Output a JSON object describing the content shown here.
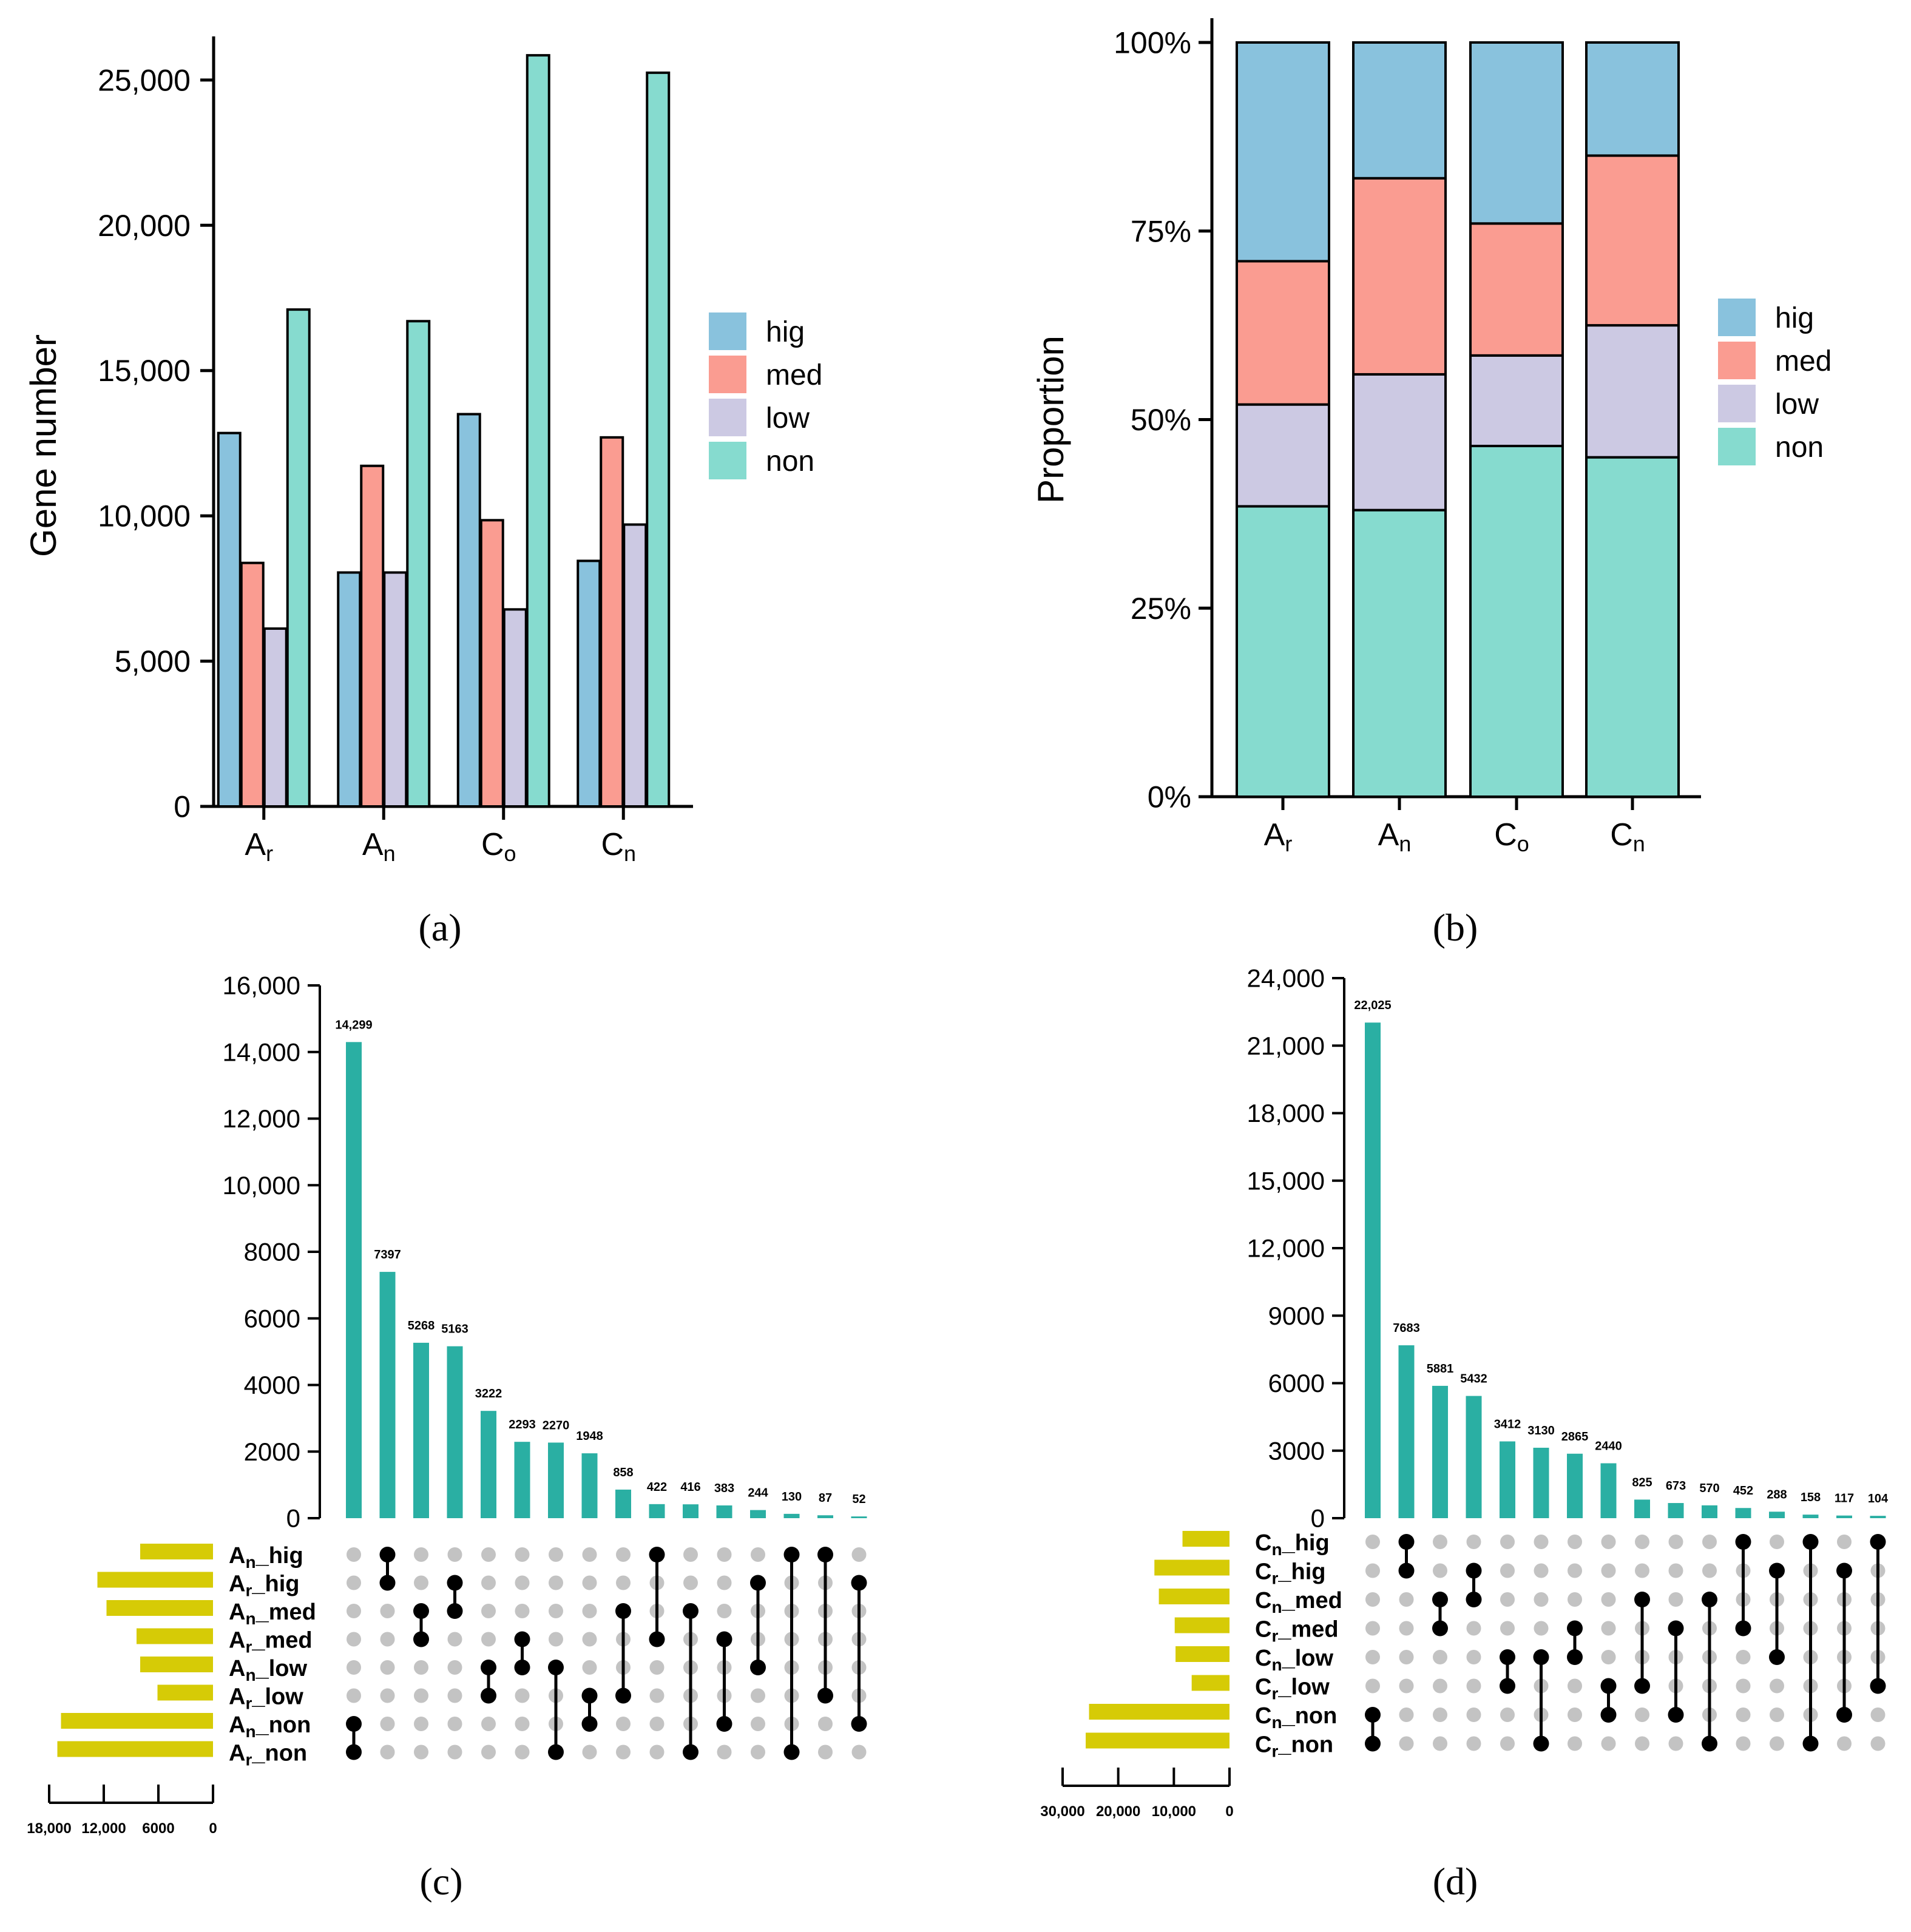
{
  "chart_data": [
    {
      "id": "a",
      "type": "bar",
      "panel_label": "(a)",
      "ylabel": "Gene number",
      "ylim": [
        0,
        26500
      ],
      "yticks": [
        0,
        5000,
        10000,
        15000,
        20000,
        25000
      ],
      "yticklabels": [
        "0",
        "5,000",
        "10,000",
        "15,000",
        "20,000",
        "25,000"
      ],
      "categories": [
        {
          "main": "A",
          "sub": "r"
        },
        {
          "main": "A",
          "sub": "n"
        },
        {
          "main": "C",
          "sub": "o"
        },
        {
          "main": "C",
          "sub": "n"
        }
      ],
      "series": [
        {
          "name": "hig",
          "color": "#89c2dd",
          "values": [
            12850,
            8050,
            13500,
            8450
          ]
        },
        {
          "name": "med",
          "color": "#fa9c91",
          "values": [
            8380,
            11720,
            9850,
            12700
          ]
        },
        {
          "name": "low",
          "color": "#ccc9e3",
          "values": [
            6120,
            8050,
            6780,
            9700
          ]
        },
        {
          "name": "non",
          "color": "#86dbcf",
          "values": [
            17100,
            16700,
            25850,
            25250
          ]
        }
      ],
      "legend_position": "right"
    },
    {
      "id": "b",
      "type": "bar",
      "stacked": true,
      "panel_label": "(b)",
      "ylabel": "Proportion",
      "ylim": [
        0,
        100
      ],
      "yticks": [
        0,
        25,
        50,
        75,
        100
      ],
      "yticklabels": [
        "0%",
        "25%",
        "50%",
        "75%",
        "100%"
      ],
      "categories": [
        {
          "main": "A",
          "sub": "r"
        },
        {
          "main": "A",
          "sub": "n"
        },
        {
          "main": "C",
          "sub": "o"
        },
        {
          "main": "C",
          "sub": "n"
        }
      ],
      "series": [
        {
          "name": "hig",
          "color": "#89c2dd",
          "values": [
            29,
            18,
            24,
            15
          ]
        },
        {
          "name": "med",
          "color": "#fa9c91",
          "values": [
            19,
            26,
            17.5,
            22.5
          ]
        },
        {
          "name": "low",
          "color": "#ccc9e3",
          "values": [
            13.5,
            18,
            12,
            17.5
          ]
        },
        {
          "name": "non",
          "color": "#86dbcf",
          "values": [
            38.5,
            38,
            46.5,
            45
          ]
        }
      ],
      "legend_position": "right"
    },
    {
      "id": "c",
      "type": "bar",
      "subtype": "upset",
      "panel_label": "(c)",
      "ylim": [
        0,
        16000
      ],
      "yticks": [
        0,
        2000,
        4000,
        6000,
        8000,
        10000,
        12000,
        14000,
        16000
      ],
      "yticklabels": [
        "0",
        "2000",
        "4000",
        "6000",
        "8000",
        "10,000",
        "12,000",
        "14,000",
        "16,000"
      ],
      "bar_color": "#2aafa3",
      "set_bar_color": "#d6cb06",
      "values": [
        14299,
        7397,
        5268,
        5163,
        3222,
        2293,
        2270,
        1948,
        858,
        422,
        416,
        383,
        244,
        130,
        87,
        52
      ],
      "value_labels": [
        "14,299",
        "7397",
        "5268",
        "5163",
        "3222",
        "2293",
        "2270",
        "1948",
        "858",
        "422",
        "416",
        "383",
        "244",
        "130",
        "87",
        "52"
      ],
      "sets": [
        {
          "main": "A",
          "sub": "n",
          "tail": "_hig",
          "size": 8000
        },
        {
          "main": "A",
          "sub": "r",
          "tail": "_hig",
          "size": 12700
        },
        {
          "main": "A",
          "sub": "n",
          "tail": "_med",
          "size": 11700
        },
        {
          "main": "A",
          "sub": "r",
          "tail": "_med",
          "size": 8400
        },
        {
          "main": "A",
          "sub": "n",
          "tail": "_low",
          "size": 8000
        },
        {
          "main": "A",
          "sub": "r",
          "tail": "_low",
          "size": 6100
        },
        {
          "main": "A",
          "sub": "n",
          "tail": "_non",
          "size": 16700
        },
        {
          "main": "A",
          "sub": "r",
          "tail": "_non",
          "size": 17100
        }
      ],
      "memberships": [
        [
          6,
          7
        ],
        [
          0,
          1
        ],
        [
          2,
          3
        ],
        [
          1,
          2
        ],
        [
          4,
          5
        ],
        [
          3,
          4
        ],
        [
          4,
          7
        ],
        [
          5,
          6
        ],
        [
          2,
          5
        ],
        [
          0,
          3
        ],
        [
          2,
          7
        ],
        [
          3,
          6
        ],
        [
          1,
          4
        ],
        [
          0,
          7
        ],
        [
          0,
          5
        ],
        [
          1,
          6
        ]
      ],
      "set_axis_max": 18000,
      "set_axis_ticks": [
        18000,
        12000,
        6000,
        0
      ],
      "set_axis_labels": [
        "18,000",
        "12,000",
        "6000",
        "0"
      ]
    },
    {
      "id": "d",
      "type": "bar",
      "subtype": "upset",
      "panel_label": "(d)",
      "ylim": [
        0,
        24000
      ],
      "yticks": [
        0,
        3000,
        6000,
        9000,
        12000,
        15000,
        18000,
        21000,
        24000
      ],
      "yticklabels": [
        "0",
        "3000",
        "6000",
        "9000",
        "12,000",
        "15,000",
        "18,000",
        "21,000",
        "24,000"
      ],
      "bar_color": "#2aafa3",
      "set_bar_color": "#d6cb06",
      "values": [
        22025,
        7683,
        5881,
        5432,
        3412,
        3130,
        2865,
        2440,
        825,
        673,
        570,
        452,
        288,
        158,
        117,
        104
      ],
      "value_labels": [
        "22,025",
        "7683",
        "5881",
        "5432",
        "3412",
        "3130",
        "2865",
        "2440",
        "825",
        "673",
        "570",
        "452",
        "288",
        "158",
        "117",
        "104"
      ],
      "sets": [
        {
          "main": "C",
          "sub": "n",
          "tail": "_hig",
          "size": 8450
        },
        {
          "main": "C",
          "sub": "r",
          "tail": "_hig",
          "size": 13500
        },
        {
          "main": "C",
          "sub": "n",
          "tail": "_med",
          "size": 12700
        },
        {
          "main": "C",
          "sub": "r",
          "tail": "_med",
          "size": 9850
        },
        {
          "main": "C",
          "sub": "n",
          "tail": "_low",
          "size": 9700
        },
        {
          "main": "C",
          "sub": "r",
          "tail": "_low",
          "size": 6800
        },
        {
          "main": "C",
          "sub": "n",
          "tail": "_non",
          "size": 25250
        },
        {
          "main": "C",
          "sub": "r",
          "tail": "_non",
          "size": 25850
        }
      ],
      "memberships": [
        [
          6,
          7
        ],
        [
          0,
          1
        ],
        [
          2,
          3
        ],
        [
          1,
          2
        ],
        [
          4,
          5
        ],
        [
          4,
          7
        ],
        [
          3,
          4
        ],
        [
          5,
          6
        ],
        [
          2,
          5
        ],
        [
          3,
          6
        ],
        [
          2,
          7
        ],
        [
          0,
          3
        ],
        [
          1,
          4
        ],
        [
          0,
          7
        ],
        [
          1,
          6
        ],
        [
          0,
          5
        ]
      ],
      "set_axis_max": 30000,
      "set_axis_ticks": [
        30000,
        20000,
        10000,
        0
      ],
      "set_axis_labels": [
        "30,000",
        "20,000",
        "10,000",
        "0"
      ]
    }
  ]
}
